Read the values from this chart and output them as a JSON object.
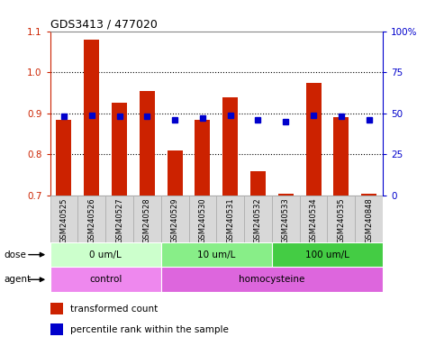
{
  "title": "GDS3413 / 477020",
  "samples": [
    "GSM240525",
    "GSM240526",
    "GSM240527",
    "GSM240528",
    "GSM240529",
    "GSM240530",
    "GSM240531",
    "GSM240532",
    "GSM240533",
    "GSM240534",
    "GSM240535",
    "GSM240848"
  ],
  "transformed_count": [
    0.885,
    1.08,
    0.925,
    0.955,
    0.81,
    0.885,
    0.94,
    0.76,
    0.705,
    0.975,
    0.89,
    0.705
  ],
  "percentile_rank": [
    48,
    49,
    48,
    48,
    46,
    47,
    49,
    46,
    45,
    49,
    48,
    46
  ],
  "bar_color": "#cc2200",
  "dot_color": "#0000cc",
  "ylim_left": [
    0.7,
    1.1
  ],
  "ylim_right": [
    0,
    100
  ],
  "yticks_left": [
    0.7,
    0.8,
    0.9,
    1.0,
    1.1
  ],
  "yticks_right": [
    0,
    25,
    50,
    75,
    100
  ],
  "ytick_labels_right": [
    "0",
    "25",
    "50",
    "75",
    "100%"
  ],
  "grid_values": [
    0.8,
    0.9,
    1.0
  ],
  "dose_groups": [
    {
      "label": "0 um/L",
      "start": 0,
      "end": 4,
      "color": "#ccffcc"
    },
    {
      "label": "10 um/L",
      "start": 4,
      "end": 8,
      "color": "#88ee88"
    },
    {
      "label": "100 um/L",
      "start": 8,
      "end": 12,
      "color": "#44cc44"
    }
  ],
  "agent_groups": [
    {
      "label": "control",
      "start": 0,
      "end": 4,
      "color": "#ee88ee"
    },
    {
      "label": "homocysteine",
      "start": 4,
      "end": 12,
      "color": "#dd66dd"
    }
  ],
  "dose_label": "dose",
  "agent_label": "agent",
  "legend_items": [
    {
      "color": "#cc2200",
      "label": "transformed count"
    },
    {
      "color": "#0000cc",
      "label": "percentile rank within the sample"
    }
  ],
  "bar_width": 0.55,
  "background_color": "#ffffff",
  "tick_bg_color": "#d8d8d8",
  "tick_border_color": "#aaaaaa"
}
